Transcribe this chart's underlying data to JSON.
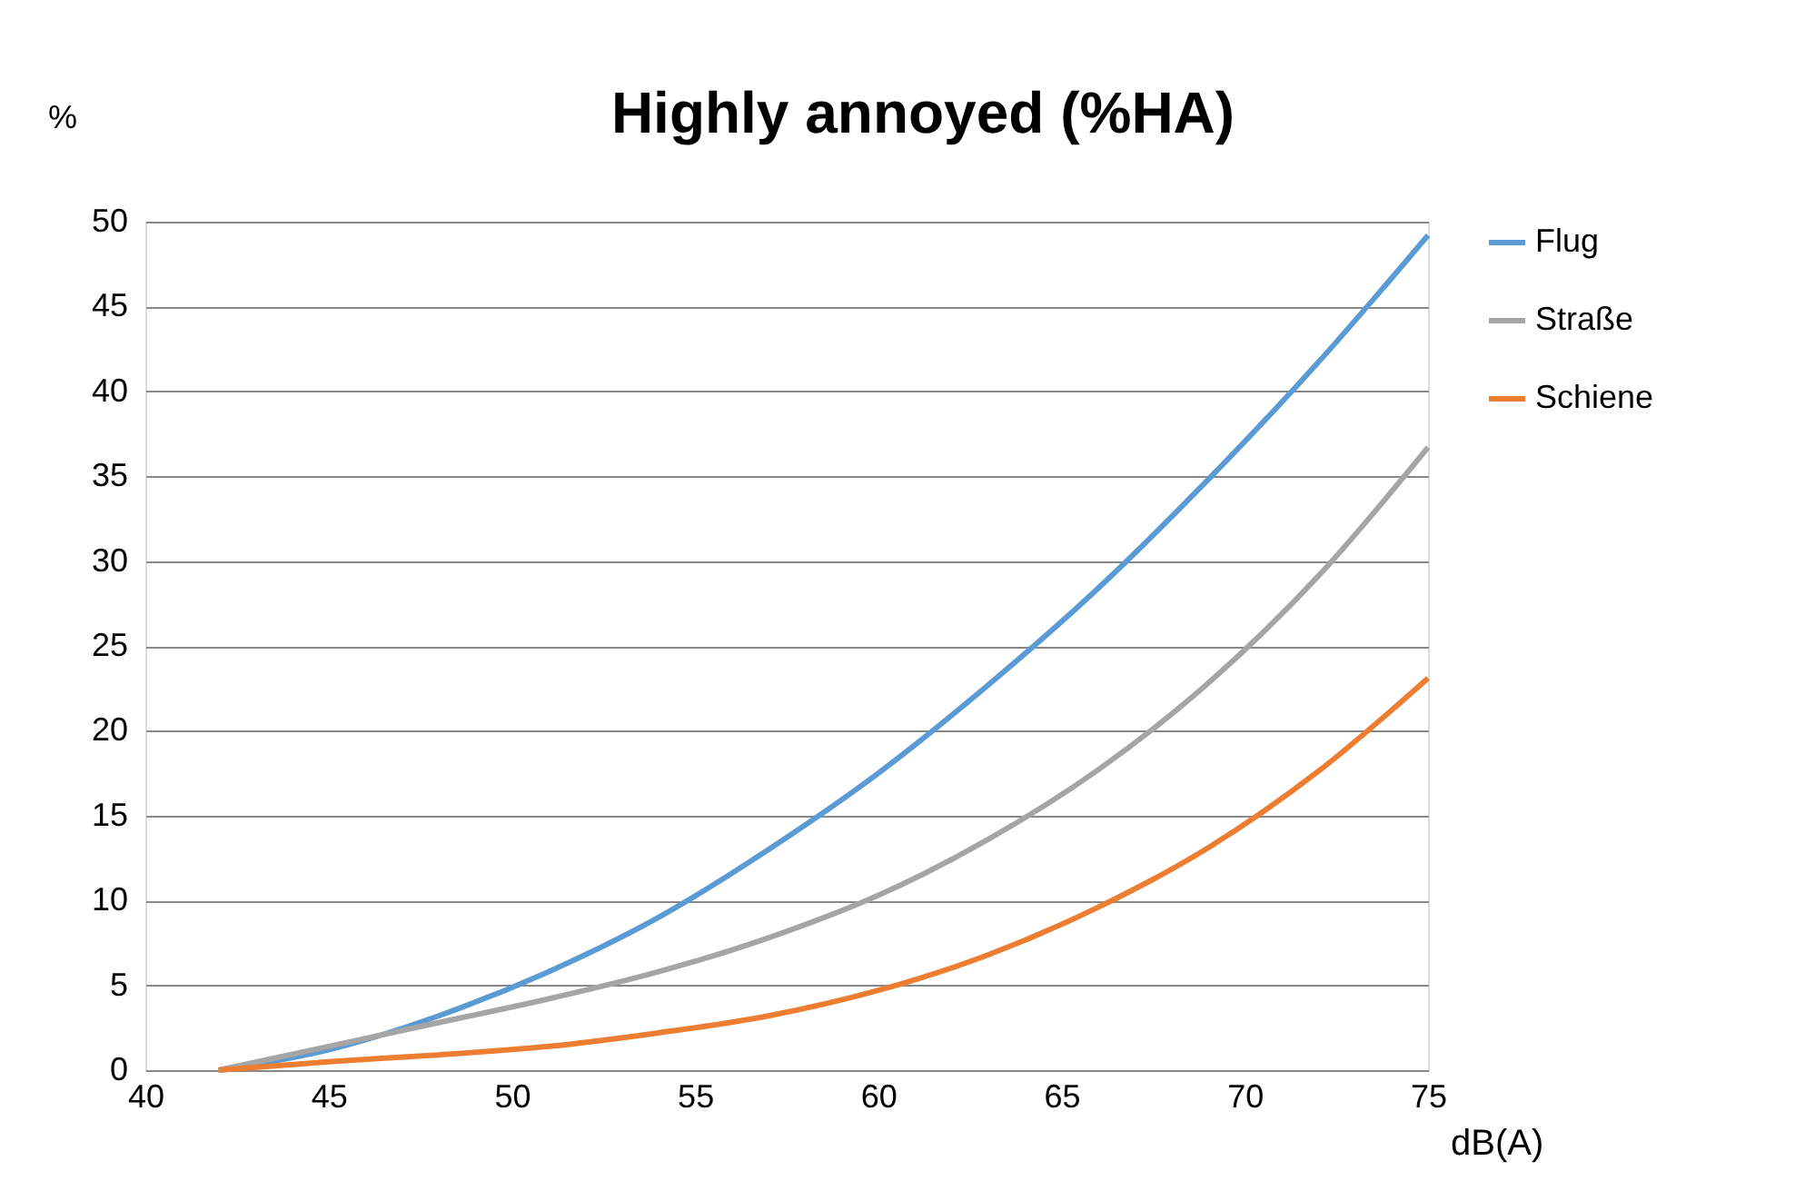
{
  "chart_data": {
    "type": "line",
    "title": "Highly annoyed (%HA)",
    "xlabel": "dB(A)",
    "ylabel": "%",
    "x": [
      42,
      45,
      48,
      51,
      54,
      57,
      60,
      63,
      66,
      69,
      72,
      75
    ],
    "series": [
      {
        "name": "Flug",
        "color": "#5b9bd5",
        "values": [
          0,
          1.2,
          3.2,
          5.8,
          9.0,
          13.0,
          17.5,
          22.7,
          28.4,
          34.8,
          41.7,
          49.2
        ]
      },
      {
        "name": "Straße",
        "color": "#a5a5a5",
        "values": [
          0,
          1.4,
          2.8,
          4.2,
          5.8,
          7.8,
          10.3,
          13.6,
          17.7,
          22.8,
          29.1,
          36.7
        ]
      },
      {
        "name": "Schiene",
        "color": "#ed7d31",
        "values": [
          0,
          0.5,
          0.9,
          1.4,
          2.2,
          3.2,
          4.7,
          6.8,
          9.6,
          13.1,
          17.6,
          23.1
        ]
      }
    ],
    "xlim": [
      40,
      75
    ],
    "xticks": [
      40,
      45,
      50,
      55,
      60,
      65,
      70,
      75
    ],
    "ylim": [
      0,
      50
    ],
    "yticks": [
      0,
      5,
      10,
      15,
      20,
      25,
      30,
      35,
      40,
      45,
      50
    ],
    "grid": "y",
    "legend": "right",
    "marker": "none",
    "line_style": "solid"
  }
}
